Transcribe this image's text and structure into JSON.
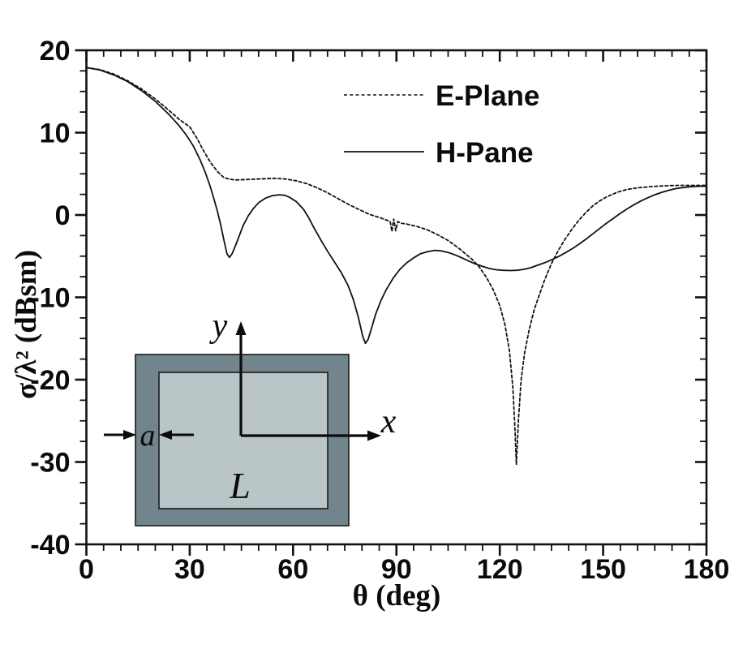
{
  "figure": {
    "background": "#ffffff",
    "ink_color": "#111111"
  },
  "axes": {
    "x": {
      "label": "θ (deg)",
      "min": 0,
      "max": 180,
      "major_ticks": [
        0,
        30,
        60,
        90,
        120,
        150,
        180
      ],
      "tick_labels": [
        "0",
        "30",
        "60",
        "90",
        "120",
        "150",
        "180"
      ],
      "minor_step": 5
    },
    "y": {
      "label": "σ/λ² (dBsm)",
      "min": -40,
      "max": 20,
      "major_ticks": [
        20,
        10,
        0,
        -10,
        -20,
        -30,
        -40
      ],
      "tick_labels": [
        "20",
        "10",
        "0",
        "-10",
        "-20",
        "-30",
        "-40"
      ],
      "minor_step": 2.5
    }
  },
  "legend": {
    "entries": [
      {
        "label": "E-Plane",
        "style": "dashed"
      },
      {
        "label": "H-Pane",
        "style": "solid"
      }
    ]
  },
  "inset": {
    "outer_square_color": "#73858c",
    "inner_square_color": "#bac5c7",
    "labels": {
      "frame_width": "a",
      "plate_size": "L",
      "x_axis": "x",
      "y_axis": "y"
    }
  },
  "chart_data": {
    "type": "line",
    "title": "",
    "xlabel": "θ (deg)",
    "ylabel": "σ/λ² (dBsm)",
    "xlim": [
      0,
      180
    ],
    "ylim": [
      -40,
      20
    ],
    "grid": false,
    "legend_position": "inside upper right",
    "series": [
      {
        "name": "E-Plane",
        "line_style": "dashed",
        "color": "#111111",
        "points": [
          [
            0,
            17.9
          ],
          [
            4,
            17.65
          ],
          [
            8,
            17.1
          ],
          [
            12,
            16.3
          ],
          [
            16,
            15.3
          ],
          [
            20,
            14.1
          ],
          [
            24,
            12.7
          ],
          [
            27,
            11.6
          ],
          [
            30,
            10.7
          ],
          [
            32,
            9.4
          ],
          [
            34,
            7.8
          ],
          [
            36,
            6.4
          ],
          [
            38,
            5.3
          ],
          [
            40,
            4.5
          ],
          [
            43,
            4.25
          ],
          [
            46,
            4.3
          ],
          [
            49,
            4.35
          ],
          [
            52,
            4.4
          ],
          [
            55,
            4.45
          ],
          [
            58,
            4.35
          ],
          [
            61,
            4.15
          ],
          [
            64,
            3.8
          ],
          [
            67,
            3.3
          ],
          [
            70,
            2.7
          ],
          [
            73,
            2.0
          ],
          [
            76,
            1.3
          ],
          [
            79,
            0.7
          ],
          [
            82,
            0.1
          ],
          [
            85,
            -0.3
          ],
          [
            87,
            -0.6
          ],
          [
            88.2,
            -0.8
          ],
          [
            88.7,
            -2.0
          ],
          [
            89.2,
            -0.5
          ],
          [
            89.8,
            -1.9
          ],
          [
            90.4,
            -0.8
          ],
          [
            91.2,
            -1.0
          ],
          [
            93,
            -1.1
          ],
          [
            96,
            -1.4
          ],
          [
            99,
            -1.8
          ],
          [
            102,
            -2.4
          ],
          [
            105,
            -3.1
          ],
          [
            108,
            -4.0
          ],
          [
            110,
            -4.7
          ],
          [
            112,
            -5.4
          ],
          [
            114,
            -6.3
          ],
          [
            116,
            -7.5
          ],
          [
            118,
            -9.0
          ],
          [
            120,
            -11.0
          ],
          [
            121.5,
            -13.3
          ],
          [
            122.8,
            -16.5
          ],
          [
            123.8,
            -21.0
          ],
          [
            124.4,
            -26.0
          ],
          [
            124.8,
            -30.3
          ],
          [
            125.4,
            -25.0
          ],
          [
            126.2,
            -20.0
          ],
          [
            127.2,
            -16.8
          ],
          [
            128.5,
            -14.0
          ],
          [
            130,
            -11.5
          ],
          [
            131.5,
            -9.7
          ],
          [
            133,
            -7.9
          ],
          [
            135,
            -5.9
          ],
          [
            137,
            -4.3
          ],
          [
            139,
            -2.9
          ],
          [
            141,
            -1.7
          ],
          [
            143,
            -0.6
          ],
          [
            145,
            0.3
          ],
          [
            147,
            1.1
          ],
          [
            149,
            1.7
          ],
          [
            151,
            2.2
          ],
          [
            154,
            2.75
          ],
          [
            157,
            3.1
          ],
          [
            160,
            3.3
          ],
          [
            164,
            3.45
          ],
          [
            168,
            3.55
          ],
          [
            172,
            3.6
          ],
          [
            176,
            3.6
          ],
          [
            180,
            3.6
          ]
        ]
      },
      {
        "name": "H-Pane",
        "line_style": "solid",
        "color": "#111111",
        "points": [
          [
            0,
            17.9
          ],
          [
            4,
            17.6
          ],
          [
            8,
            17.0
          ],
          [
            12,
            16.2
          ],
          [
            16,
            15.1
          ],
          [
            20,
            13.8
          ],
          [
            24,
            12.2
          ],
          [
            27,
            10.8
          ],
          [
            29,
            9.7
          ],
          [
            31,
            8.4
          ],
          [
            33,
            6.7
          ],
          [
            34.5,
            5.2
          ],
          [
            36,
            3.4
          ],
          [
            37,
            2.0
          ],
          [
            38,
            0.5
          ],
          [
            39,
            -1.2
          ],
          [
            40,
            -3.2
          ],
          [
            40.8,
            -4.7
          ],
          [
            41.5,
            -5.15
          ],
          [
            42.3,
            -4.7
          ],
          [
            43.3,
            -3.7
          ],
          [
            44.3,
            -2.6
          ],
          [
            45.5,
            -1.3
          ],
          [
            47,
            -0.1
          ],
          [
            48.5,
            0.8
          ],
          [
            50,
            1.5
          ],
          [
            52,
            2.05
          ],
          [
            54,
            2.35
          ],
          [
            56,
            2.45
          ],
          [
            57.5,
            2.4
          ],
          [
            59,
            2.15
          ],
          [
            61,
            1.6
          ],
          [
            63,
            0.7
          ],
          [
            64.5,
            -0.3
          ],
          [
            66,
            -1.5
          ],
          [
            68,
            -3.0
          ],
          [
            70,
            -4.4
          ],
          [
            72,
            -5.7
          ],
          [
            74,
            -7.0
          ],
          [
            76,
            -8.6
          ],
          [
            77.5,
            -10.3
          ],
          [
            79,
            -12.5
          ],
          [
            80.2,
            -14.7
          ],
          [
            81,
            -15.6
          ],
          [
            81.8,
            -15.1
          ],
          [
            82.8,
            -13.7
          ],
          [
            84,
            -12.0
          ],
          [
            85.5,
            -10.4
          ],
          [
            87,
            -9.1
          ],
          [
            89,
            -7.7
          ],
          [
            91,
            -6.6
          ],
          [
            93,
            -5.8
          ],
          [
            95,
            -5.2
          ],
          [
            97,
            -4.7
          ],
          [
            99,
            -4.45
          ],
          [
            101,
            -4.3
          ],
          [
            103,
            -4.35
          ],
          [
            105,
            -4.55
          ],
          [
            107,
            -4.85
          ],
          [
            109,
            -5.2
          ],
          [
            111,
            -5.6
          ],
          [
            113,
            -5.95
          ],
          [
            115,
            -6.25
          ],
          [
            117,
            -6.5
          ],
          [
            119,
            -6.65
          ],
          [
            121,
            -6.72
          ],
          [
            123,
            -6.75
          ],
          [
            125,
            -6.72
          ],
          [
            127,
            -6.6
          ],
          [
            129,
            -6.4
          ],
          [
            131,
            -6.1
          ],
          [
            133,
            -5.8
          ],
          [
            135,
            -5.45
          ],
          [
            137,
            -5.05
          ],
          [
            139,
            -4.6
          ],
          [
            141,
            -4.1
          ],
          [
            143,
            -3.55
          ],
          [
            145,
            -2.95
          ],
          [
            147,
            -2.3
          ],
          [
            149,
            -1.65
          ],
          [
            151,
            -1.0
          ],
          [
            153,
            -0.4
          ],
          [
            155,
            0.2
          ],
          [
            157,
            0.75
          ],
          [
            159,
            1.25
          ],
          [
            161,
            1.7
          ],
          [
            163,
            2.1
          ],
          [
            165,
            2.45
          ],
          [
            167,
            2.75
          ],
          [
            169,
            3.0
          ],
          [
            171,
            3.2
          ],
          [
            173,
            3.32
          ],
          [
            175,
            3.42
          ],
          [
            177,
            3.48
          ],
          [
            180,
            3.5
          ]
        ]
      }
    ]
  }
}
